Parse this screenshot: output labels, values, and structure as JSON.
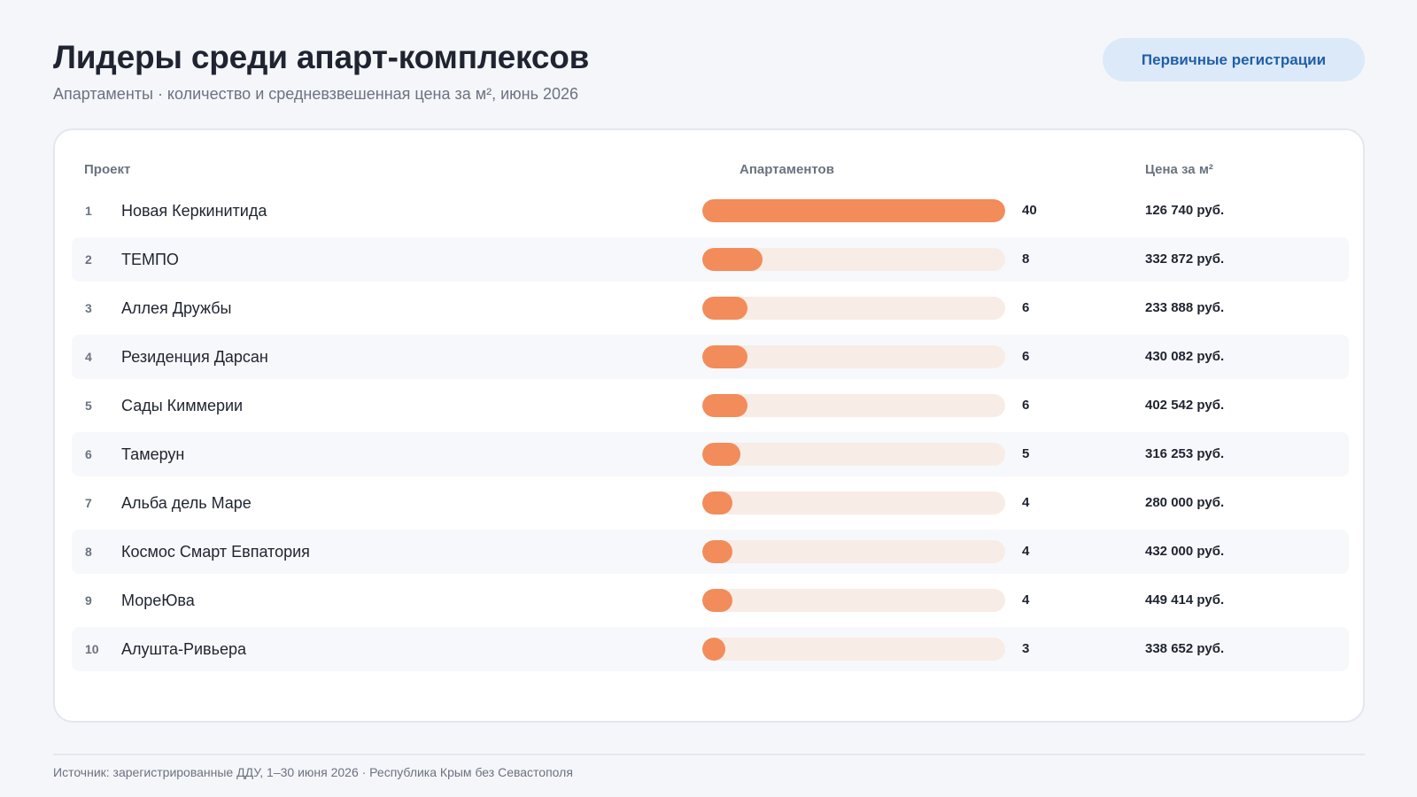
{
  "header": {
    "title": "Лидеры среди апарт-комплексов",
    "subtitle": "Апартаменты · количество и средневзвешенная цена за м², июнь 2026",
    "badge_label": "Первичные регистрации"
  },
  "table": {
    "columns": {
      "project": "Проект",
      "count": "Апартаментов",
      "price": "Цена за м²"
    }
  },
  "chart_data": {
    "type": "bar",
    "orientation": "horizontal",
    "title": "Лидеры среди апарт-комплексов",
    "subtitle": "Апартаменты · количество и средневзвешенная цена за м², июнь 2026",
    "xlim": [
      0,
      40
    ],
    "bar_color": "#f28c5a",
    "track_color": "#f8ece6",
    "rows": [
      {
        "rank": "1",
        "name": "Новая Керкинитида",
        "count": 40,
        "count_label": "40",
        "price": "126 740 руб."
      },
      {
        "rank": "2",
        "name": "ТЕМПО",
        "count": 8,
        "count_label": "8",
        "price": "332 872 руб."
      },
      {
        "rank": "3",
        "name": "Аллея Дружбы",
        "count": 6,
        "count_label": "6",
        "price": "233 888 руб."
      },
      {
        "rank": "4",
        "name": "Резиденция Дарсан",
        "count": 6,
        "count_label": "6",
        "price": "430 082 руб."
      },
      {
        "rank": "5",
        "name": "Сады Киммерии",
        "count": 6,
        "count_label": "6",
        "price": "402 542 руб."
      },
      {
        "rank": "6",
        "name": "Тамерун",
        "count": 5,
        "count_label": "5",
        "price": "316 253 руб."
      },
      {
        "rank": "7",
        "name": "Альба дель Маре",
        "count": 4,
        "count_label": "4",
        "price": "280 000 руб."
      },
      {
        "rank": "8",
        "name": "Космос Смарт Евпатория",
        "count": 4,
        "count_label": "4",
        "price": "432 000 руб."
      },
      {
        "rank": "9",
        "name": "МореЮва",
        "count": 4,
        "count_label": "4",
        "price": "449 414 руб."
      },
      {
        "rank": "10",
        "name": "Алушта-Ривьера",
        "count": 3,
        "count_label": "3",
        "price": "338 652 руб."
      }
    ]
  },
  "footer": {
    "source": "Источник: зарегистрированные ДДУ, 1–30 июня 2026 · Республика Крым без Севастополя"
  }
}
